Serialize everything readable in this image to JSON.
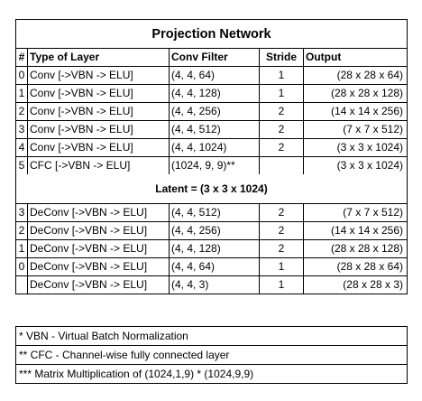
{
  "title": "Projection Network",
  "headers": [
    "#",
    "Type of Layer",
    "Conv Filter",
    "Stride",
    "Output"
  ],
  "encoder_rows": [
    [
      "0",
      "Conv [->VBN -> ELU]",
      "(4, 4, 64)",
      "1",
      "(28 x 28 x 64)"
    ],
    [
      "1",
      "Conv [->VBN -> ELU]",
      "(4, 4, 128)",
      "1",
      "(28 x 28 x 128)"
    ],
    [
      "2",
      "Conv [->VBN -> ELU]",
      "(4, 4, 256)",
      "2",
      "(14 x 14 x 256)"
    ],
    [
      "3",
      "Conv [->VBN -> ELU]",
      "(4, 4, 512)",
      "2",
      "(7 x 7 x 512)"
    ],
    [
      "4",
      "Conv [->VBN -> ELU]",
      "(4, 4, 1024)",
      "2",
      "(3 x 3 x 1024)"
    ],
    [
      "5",
      "CFC [->VBN -> ELU]",
      "(1024, 9, 9)**",
      "",
      "(3 x 3 x 1024)"
    ]
  ],
  "latent": "Latent = (3 x 3 x 1024)",
  "decoder_rows": [
    [
      "3",
      "DeConv [->VBN -> ELU]",
      "(4, 4, 512)",
      "2",
      "(7 x 7 x 512)"
    ],
    [
      "2",
      "DeConv [->VBN -> ELU]",
      "(4, 4, 256)",
      "2",
      "(14 x 14 x 256)"
    ],
    [
      "1",
      "DeConv [->VBN -> ELU]",
      "(4, 4, 128)",
      "2",
      "(28 x 28 x 128)"
    ],
    [
      "0",
      "DeConv [->VBN -> ELU]",
      "(4, 4, 64)",
      "1",
      "(28 x 28 x 64)"
    ],
    [
      "",
      "DeConv [->VBN -> ELU]",
      "(4, 4, 3)",
      "1",
      "(28 x 28 x 3)"
    ]
  ],
  "footnotes": [
    "* VBN - Virtual Batch Normalization",
    "** CFC - Channel-wise fully connected layer",
    "*** Matrix Multiplication of (1024,1,9) * (1024,9,9)"
  ]
}
